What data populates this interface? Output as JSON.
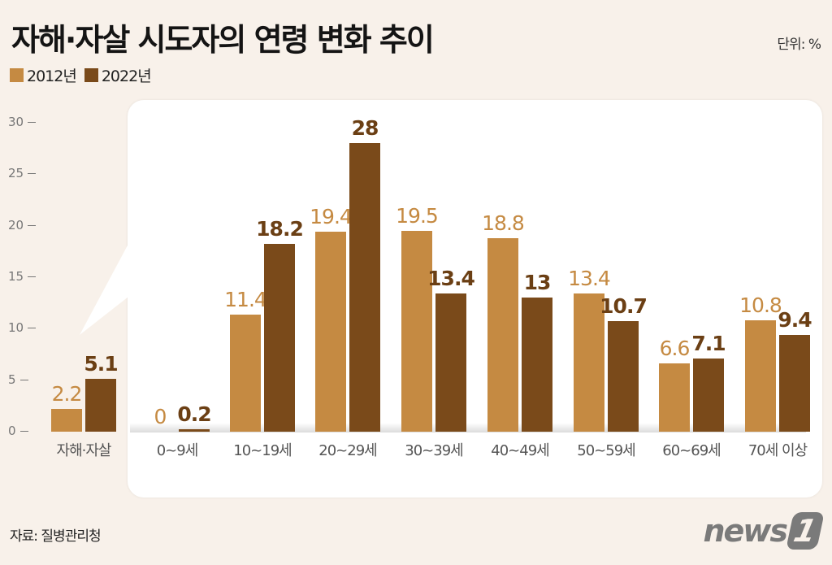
{
  "header": {
    "title": "자해·자살 시도자의 연령 변화 추이",
    "unit": "단위: %"
  },
  "legend": [
    {
      "label": "2012년",
      "color": "#c58a42"
    },
    {
      "label": "2022년",
      "color": "#7a4a1a"
    }
  ],
  "footer": {
    "source": "자료: 질병관리청",
    "logo_text": "news",
    "logo_mark": "1"
  },
  "colors": {
    "series_2012": "#c58a42",
    "series_2022": "#7a4a1a",
    "background": "#f8f1ea",
    "panel": "#ffffff"
  },
  "chart_data": {
    "type": "bar",
    "title": "자해·자살 시도자의 연령 변화 추이",
    "unit": "%",
    "xlabel": "",
    "ylabel": "",
    "ylim": [
      0,
      30
    ],
    "yticks": [
      0,
      5,
      10,
      15,
      20,
      25,
      30
    ],
    "legend_position": "top-left",
    "grid": false,
    "categories": [
      "자해·자살",
      "0~9세",
      "10~19세",
      "20~29세",
      "30~39세",
      "40~49세",
      "50~59세",
      "60~69세",
      "70세 이상"
    ],
    "series": [
      {
        "name": "2012년",
        "values": [
          2.2,
          0,
          11.4,
          19.4,
          19.5,
          18.8,
          13.4,
          6.6,
          10.8
        ],
        "labels": [
          "2.2",
          "0",
          "11.4",
          "19.4",
          "19.5",
          "18.8",
          "13.4",
          "6.6",
          "10.8"
        ]
      },
      {
        "name": "2022년",
        "values": [
          5.1,
          0.2,
          18.2,
          28,
          13.4,
          13,
          10.7,
          7.1,
          9.4
        ],
        "labels": [
          "5.1",
          "0.2",
          "18.2",
          "28",
          "13.4",
          "13",
          "10.7",
          "7.1",
          "9.4"
        ]
      }
    ],
    "annotations": [
      "자해·자살 total group shown outside callout panel; age breakdown shown inside panel"
    ]
  }
}
